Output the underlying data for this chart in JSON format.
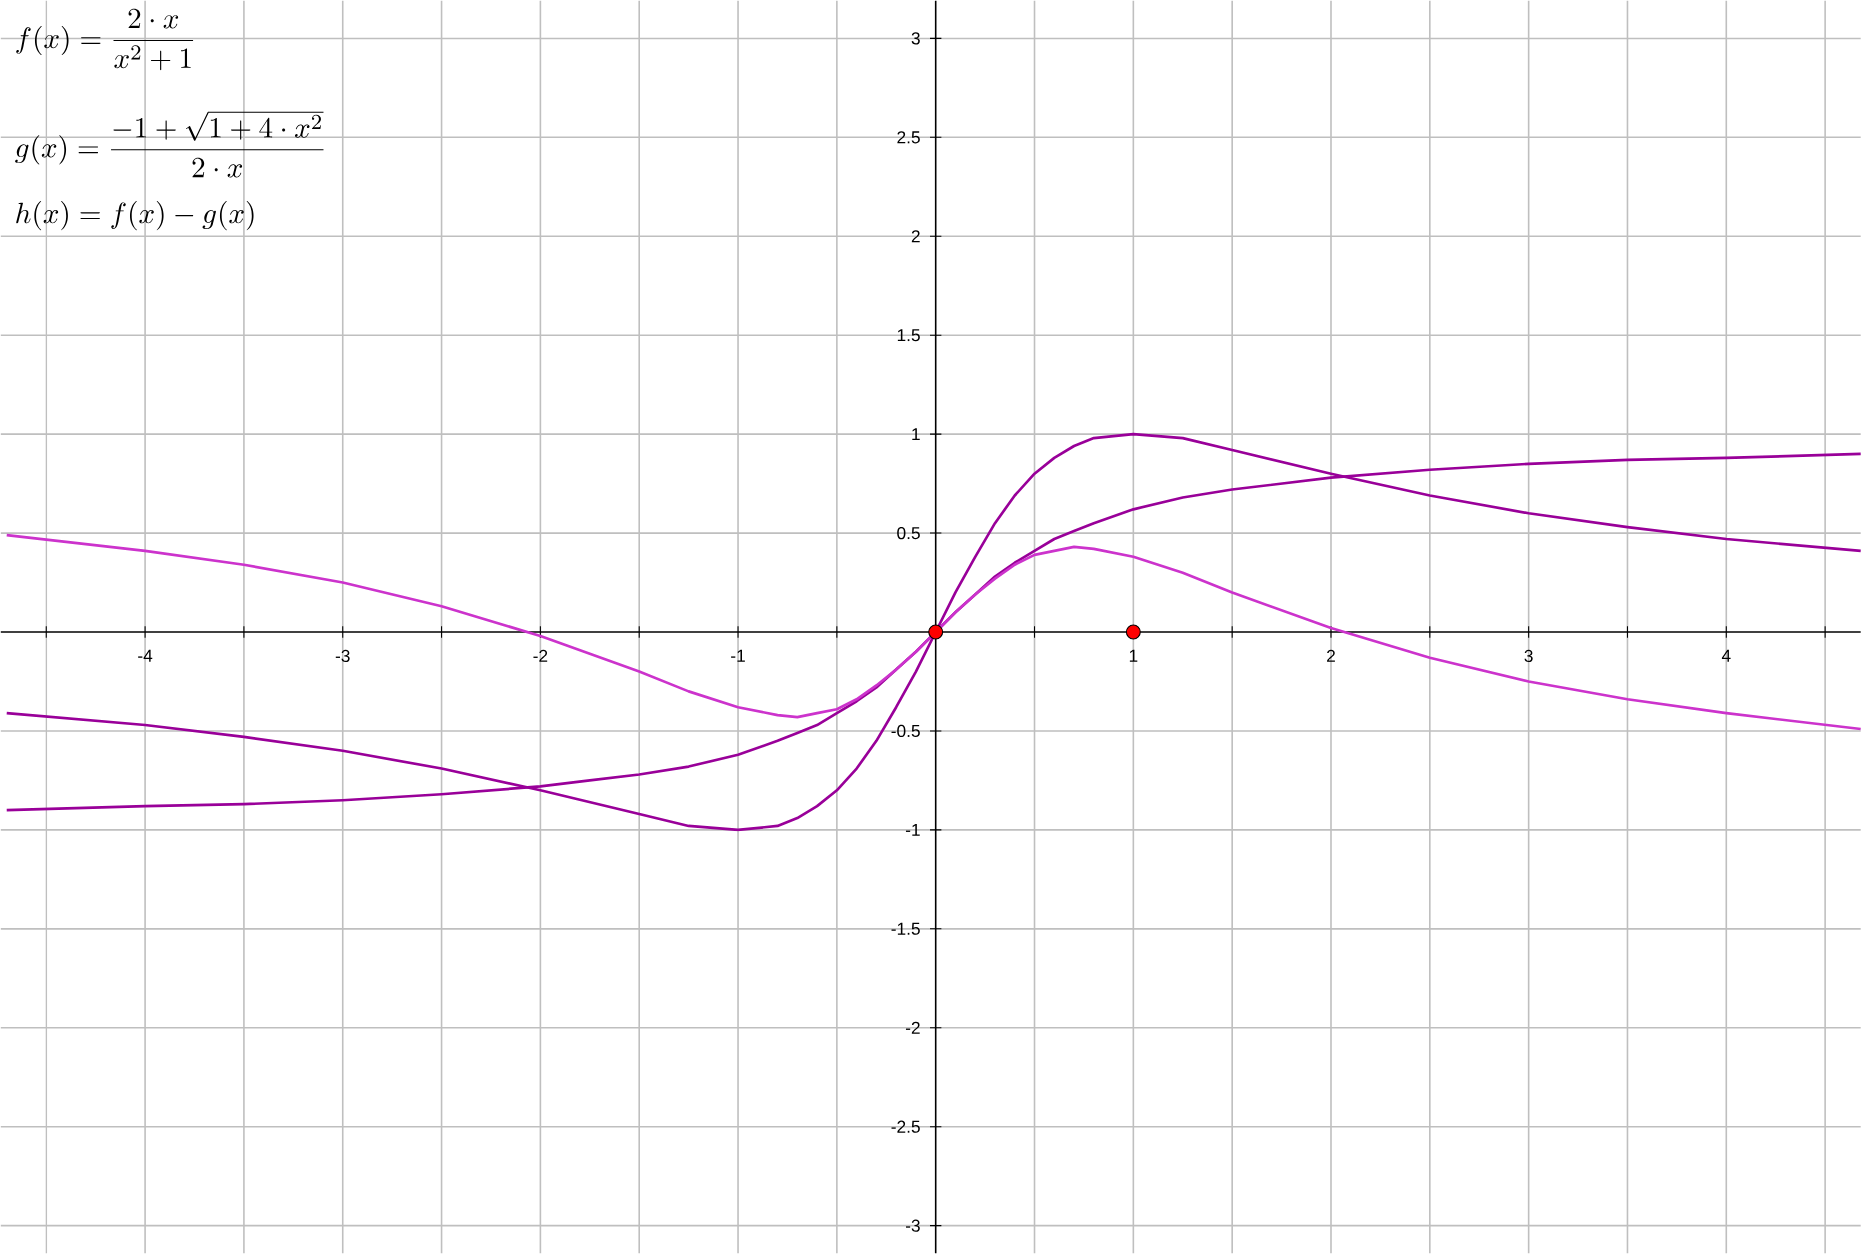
{
  "chart_data": {
    "type": "line",
    "x": [
      -4.7,
      -4,
      -3.5,
      -3,
      -2.5,
      -2,
      -1.75,
      -1.5,
      -1.25,
      -1,
      -0.8,
      -0.7,
      -0.6,
      -0.5,
      -0.4,
      -0.3,
      -0.2,
      -0.1,
      0,
      0.1,
      0.2,
      0.3,
      0.4,
      0.5,
      0.6,
      0.7,
      0.8,
      1,
      1.25,
      1.5,
      1.75,
      2,
      2.5,
      3,
      3.5,
      4,
      4.68
    ],
    "series": [
      {
        "color": "#990099",
        "values": [
          -0.41,
          -0.47,
          -0.53,
          -0.6,
          -0.69,
          -0.8,
          -0.86,
          -0.92,
          -0.98,
          -1,
          -0.98,
          -0.94,
          -0.88,
          -0.8,
          -0.69,
          -0.55,
          -0.38,
          -0.2,
          0,
          0.2,
          0.38,
          0.55,
          0.69,
          0.8,
          0.88,
          0.94,
          0.98,
          1,
          0.98,
          0.92,
          0.86,
          0.8,
          0.69,
          0.6,
          0.53,
          0.47,
          0.41
        ]
      },
      {
        "color": "#990099",
        "values": [
          -0.9,
          -0.88,
          -0.87,
          -0.85,
          -0.82,
          -0.78,
          -0.75,
          -0.72,
          -0.68,
          -0.62,
          -0.55,
          -0.51,
          -0.47,
          -0.41,
          -0.35,
          -0.28,
          -0.19,
          -0.1,
          0,
          0.1,
          0.19,
          0.28,
          0.35,
          0.41,
          0.47,
          0.51,
          0.55,
          0.62,
          0.68,
          0.72,
          0.75,
          0.78,
          0.82,
          0.85,
          0.87,
          0.88,
          0.9
        ]
      },
      {
        "color": "#cc33cc",
        "values": [
          0.49,
          0.41,
          0.34,
          0.25,
          0.13,
          -0.02,
          -0.11,
          -0.2,
          -0.3,
          -0.38,
          -0.42,
          -0.43,
          -0.41,
          -0.39,
          -0.34,
          -0.27,
          -0.19,
          -0.1,
          0,
          0.1,
          0.19,
          0.27,
          0.34,
          0.39,
          0.41,
          0.43,
          0.42,
          0.38,
          0.3,
          0.2,
          0.11,
          0.02,
          -0.13,
          -0.25,
          -0.34,
          -0.41,
          -0.49
        ]
      },
      {
        "type": "scatter",
        "marker": "circle",
        "color": "#ff0000",
        "x": [
          0,
          1
        ],
        "values": [
          0,
          0
        ]
      }
    ],
    "annotations": [
      "f(x)=\\frac{2\\cdot x}{x^{2}+1}",
      "g(x)=\\frac{-1+\\sqrt{1+4\\cdot x^{2}}}{2\\cdot x}",
      "h(x)=f(x)-g(x)"
    ],
    "xlim": [
      -4.73,
      4.68
    ],
    "ylim": [
      -3.14,
      3.19
    ],
    "xticks": [
      {
        "value": -4.5,
        "label": null
      },
      -4,
      {
        "value": -3.5,
        "label": null
      },
      -3,
      {
        "value": -2.5,
        "label": null
      },
      -2,
      {
        "value": -1.5,
        "label": null
      },
      -1,
      {
        "value": -0.5,
        "label": null
      },
      {
        "value": 0.5,
        "label": null
      },
      1,
      {
        "value": 1.5,
        "label": null
      },
      2,
      {
        "value": 2.5,
        "label": null
      },
      3,
      {
        "value": 3.5,
        "label": null
      },
      4,
      {
        "value": 4.5,
        "label": null
      }
    ],
    "yticks": [
      -3,
      -2.5,
      -2,
      -1.5,
      -1,
      -0.5,
      0.5,
      1,
      1.5,
      2,
      2.5,
      3
    ],
    "grid": true
  }
}
